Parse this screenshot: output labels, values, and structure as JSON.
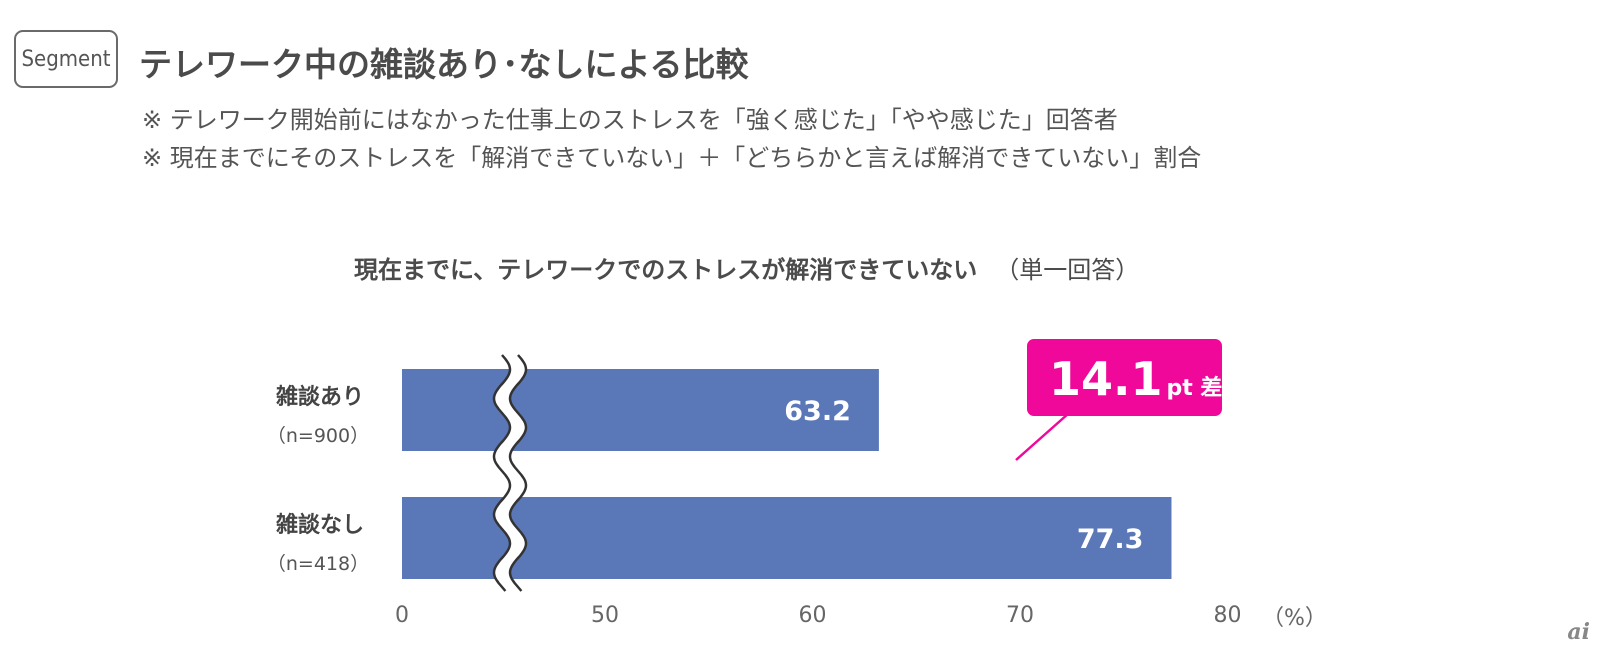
{
  "header": {
    "badge": "Segment",
    "title": "テレワーク中の雑談あり･なしによる比較",
    "notes": [
      "※ テレワーク開始前にはなかった仕事上のストレスを「強く感じた」「やや感じた」回答者",
      "※ 現在までにそのストレスを「解消できていない」＋「どちらかと言えば解消できていない」割合"
    ]
  },
  "chart_data": {
    "type": "bar",
    "orientation": "horizontal",
    "title": "現在までに、テレワークでのストレスが解消できていない",
    "subtitle": "（単一回答）",
    "categories": [
      "雑談あり",
      "雑談なし"
    ],
    "sample_sizes": [
      "（n=900）",
      "（n=418）"
    ],
    "values": [
      63.2,
      77.3
    ],
    "value_labels": [
      "63.2",
      "77.3"
    ],
    "x_ticks": [
      "0",
      "50",
      "60",
      "70",
      "80"
    ],
    "x_unit": "（%）",
    "axis_break": "between 0 and 50",
    "xlim": [
      45,
      80
    ],
    "bar_color": "#5a77b8",
    "callout": {
      "value": "14.1",
      "unit": "pt 差",
      "color": "#f0089a"
    }
  },
  "footer": {
    "logo": "ai"
  }
}
